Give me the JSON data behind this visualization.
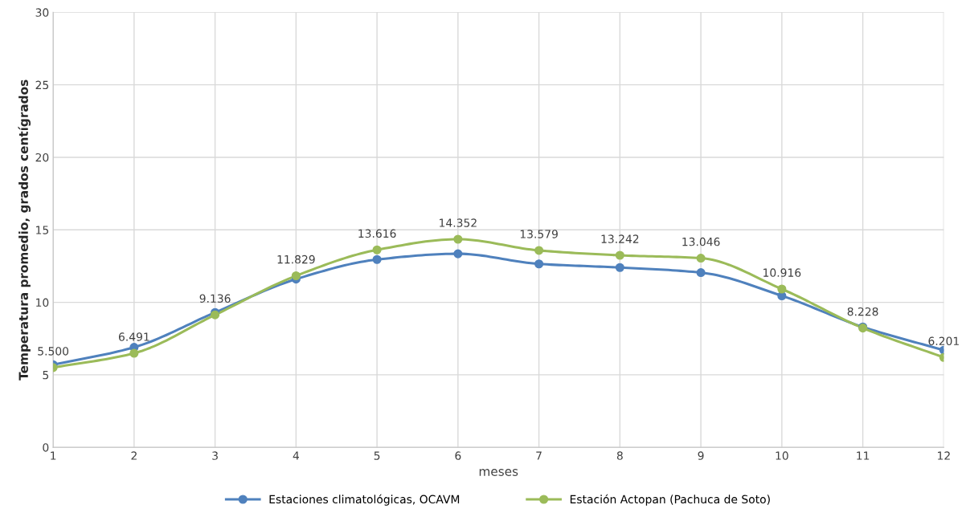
{
  "chart_data": {
    "type": "line",
    "xlabel": "meses",
    "ylabel": "Temperatura promedio, grados centígrados",
    "x": [
      1,
      2,
      3,
      4,
      5,
      6,
      7,
      8,
      9,
      10,
      11,
      12
    ],
    "series": [
      {
        "name": "Estaciones climatológicas, OCAVM",
        "color": "#4f81bd",
        "values": [
          5.7,
          6.9,
          9.3,
          11.6,
          12.95,
          13.35,
          12.65,
          12.4,
          12.05,
          10.45,
          8.3,
          6.7
        ]
      },
      {
        "name": "Estación Actopan (Pachuca de Soto)",
        "color": "#9bbb59",
        "values": [
          5.5,
          6.491,
          9.136,
          11.829,
          13.616,
          14.352,
          13.579,
          13.242,
          13.046,
          10.916,
          8.228,
          6.201
        ],
        "value_labels": [
          "5.500",
          "6.491",
          "9.136",
          "11.829",
          "13.616",
          "14.352",
          "13.579",
          "13.242",
          "13.046",
          "10.916",
          "8.228",
          "6.201"
        ]
      }
    ],
    "xlim": [
      1,
      12
    ],
    "xticks": [
      1,
      2,
      3,
      4,
      5,
      6,
      7,
      8,
      9,
      10,
      11,
      12
    ],
    "ylim": [
      0,
      30
    ],
    "yticks": [
      0,
      5,
      10,
      15,
      20,
      25,
      30
    ],
    "grid": true,
    "legend": "bottom",
    "marker": "circle",
    "line_style": "solid"
  }
}
